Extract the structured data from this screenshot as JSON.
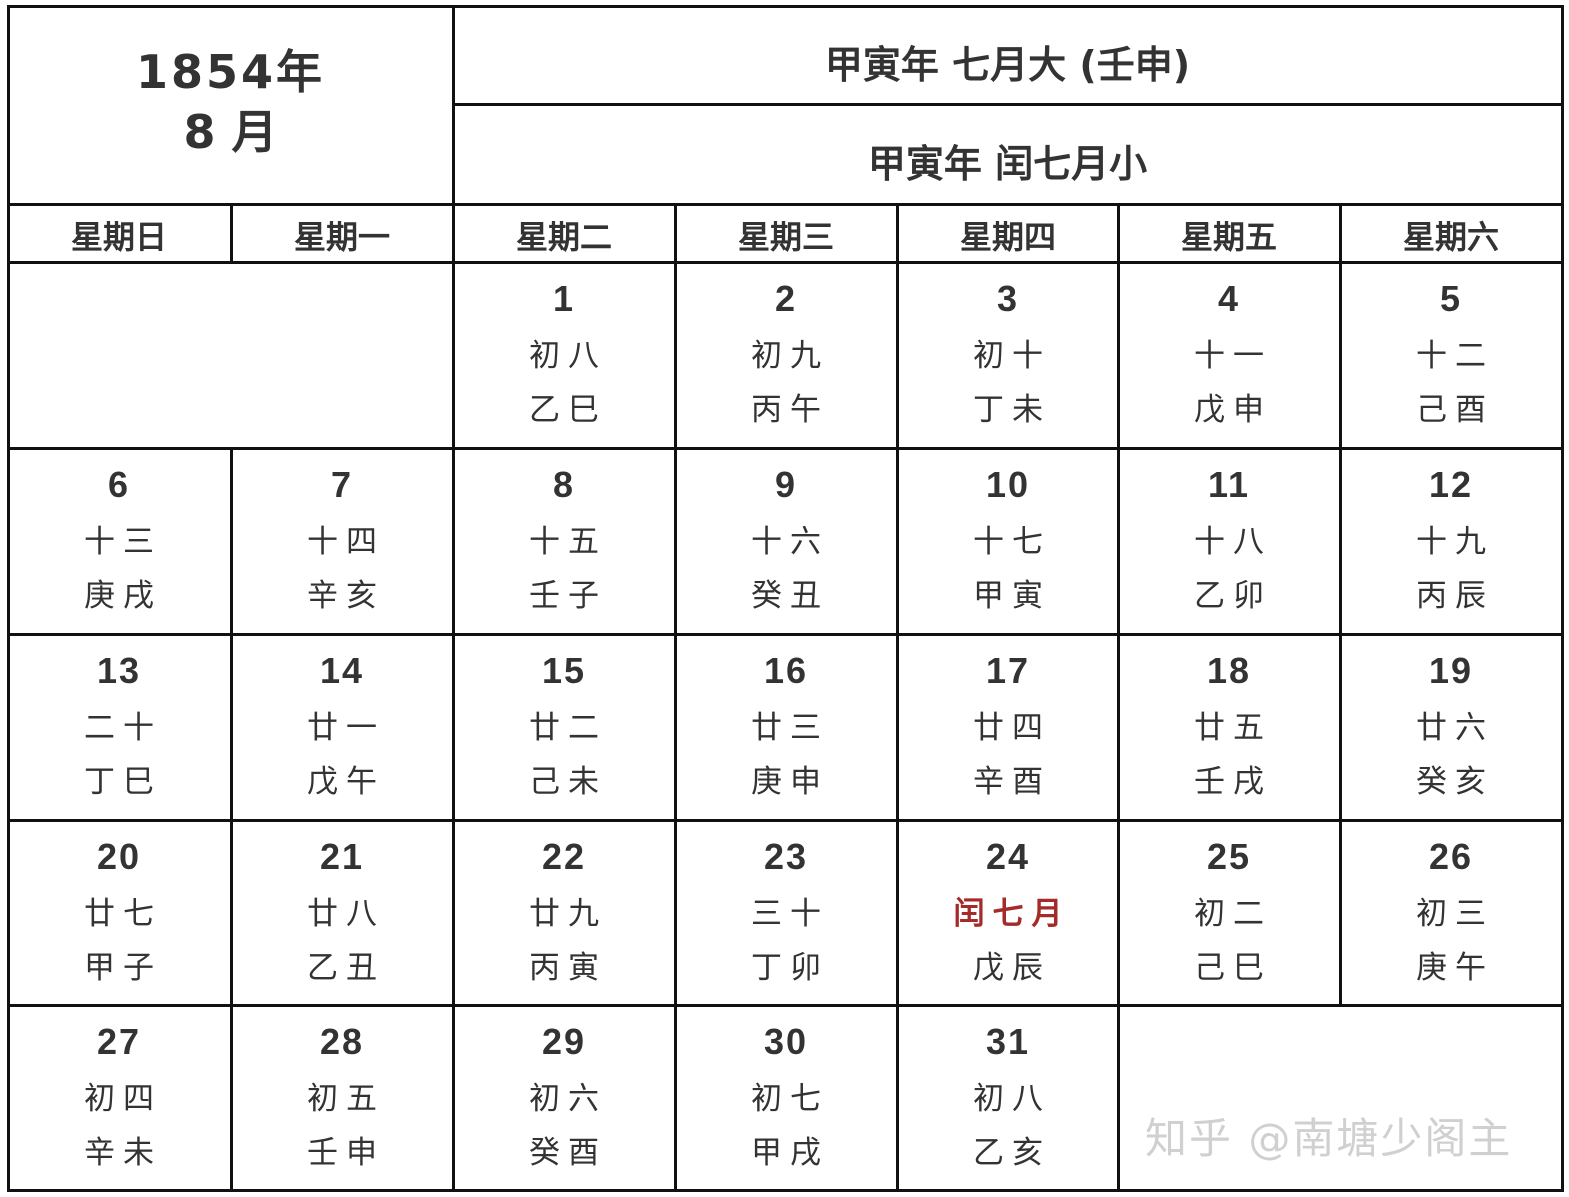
{
  "header": {
    "year": "1854年",
    "month": "8 月",
    "lunar_month_1": "甲寅年 七月大 (壬申)",
    "lunar_month_2": "甲寅年 闰七月小"
  },
  "weekdays": [
    "星期日",
    "星期一",
    "星期二",
    "星期三",
    "星期四",
    "星期五",
    "星期六"
  ],
  "weeks": [
    [
      null,
      null,
      {
        "day": "1",
        "lunar": "初八",
        "ganzhi": "乙巳"
      },
      {
        "day": "2",
        "lunar": "初九",
        "ganzhi": "丙午"
      },
      {
        "day": "3",
        "lunar": "初十",
        "ganzhi": "丁未"
      },
      {
        "day": "4",
        "lunar": "十一",
        "ganzhi": "戊申"
      },
      {
        "day": "5",
        "lunar": "十二",
        "ganzhi": "己酉"
      }
    ],
    [
      {
        "day": "6",
        "lunar": "十三",
        "ganzhi": "庚戌"
      },
      {
        "day": "7",
        "lunar": "十四",
        "ganzhi": "辛亥"
      },
      {
        "day": "8",
        "lunar": "十五",
        "ganzhi": "壬子"
      },
      {
        "day": "9",
        "lunar": "十六",
        "ganzhi": "癸丑"
      },
      {
        "day": "10",
        "lunar": "十七",
        "ganzhi": "甲寅"
      },
      {
        "day": "11",
        "lunar": "十八",
        "ganzhi": "乙卯"
      },
      {
        "day": "12",
        "lunar": "十九",
        "ganzhi": "丙辰"
      }
    ],
    [
      {
        "day": "13",
        "lunar": "二十",
        "ganzhi": "丁巳"
      },
      {
        "day": "14",
        "lunar": "廿一",
        "ganzhi": "戊午"
      },
      {
        "day": "15",
        "lunar": "廿二",
        "ganzhi": "己未"
      },
      {
        "day": "16",
        "lunar": "廿三",
        "ganzhi": "庚申"
      },
      {
        "day": "17",
        "lunar": "廿四",
        "ganzhi": "辛酉"
      },
      {
        "day": "18",
        "lunar": "廿五",
        "ganzhi": "壬戌"
      },
      {
        "day": "19",
        "lunar": "廿六",
        "ganzhi": "癸亥"
      }
    ],
    [
      {
        "day": "20",
        "lunar": "廿七",
        "ganzhi": "甲子"
      },
      {
        "day": "21",
        "lunar": "廿八",
        "ganzhi": "乙丑"
      },
      {
        "day": "22",
        "lunar": "廿九",
        "ganzhi": "丙寅"
      },
      {
        "day": "23",
        "lunar": "三十",
        "ganzhi": "丁卯"
      },
      {
        "day": "24",
        "lunar": "闰七月",
        "ganzhi": "戊辰",
        "highlight": true
      },
      {
        "day": "25",
        "lunar": "初二",
        "ganzhi": "己巳"
      },
      {
        "day": "26",
        "lunar": "初三",
        "ganzhi": "庚午"
      }
    ],
    [
      {
        "day": "27",
        "lunar": "初四",
        "ganzhi": "辛未"
      },
      {
        "day": "28",
        "lunar": "初五",
        "ganzhi": "壬申"
      },
      {
        "day": "29",
        "lunar": "初六",
        "ganzhi": "癸酉"
      },
      {
        "day": "30",
        "lunar": "初七",
        "ganzhi": "甲戌"
      },
      {
        "day": "31",
        "lunar": "初八",
        "ganzhi": "乙亥"
      },
      null,
      null
    ]
  ],
  "colors": {
    "text": "#333333",
    "highlight": "#a52a2a",
    "border": "#111111",
    "watermark": "#d0d0d0"
  },
  "watermark": "知乎 @南塘少阁主"
}
